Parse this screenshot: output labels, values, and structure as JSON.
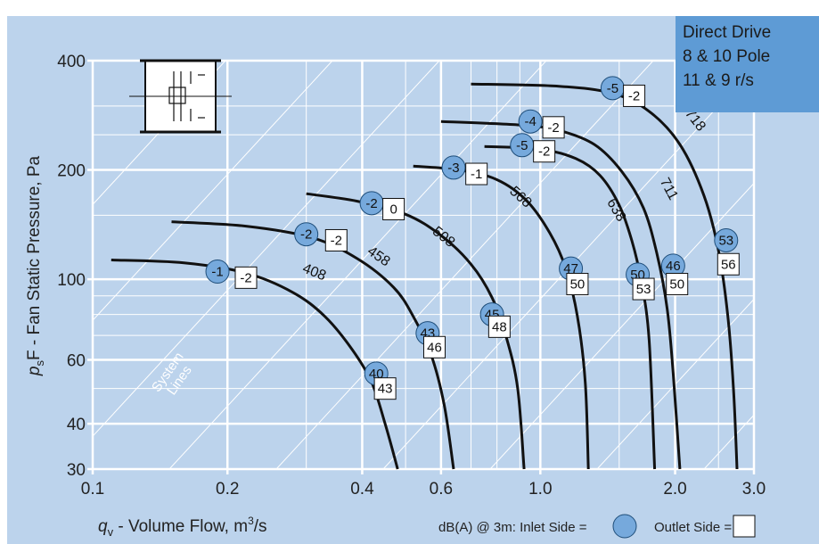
{
  "chart_data": {
    "type": "line",
    "title": "",
    "xlabel": "",
    "ylabel": "",
    "x_scale": "log",
    "y_scale": "log",
    "xlim": [
      0.1,
      3.0
    ],
    "ylim": [
      30,
      400
    ],
    "grid": true,
    "x_ticks": [
      {
        "value": 0.1,
        "label": "0.1"
      },
      {
        "value": 0.2,
        "label": "0.2"
      },
      {
        "value": 0.4,
        "label": "0.4"
      },
      {
        "value": 0.6,
        "label": "0.6"
      },
      {
        "value": 1.0,
        "label": "1.0"
      },
      {
        "value": 2.0,
        "label": "2.0"
      },
      {
        "value": 3.0,
        "label": "3.0"
      }
    ],
    "y_ticks": [
      {
        "value": 30,
        "label": "30"
      },
      {
        "value": 40,
        "label": "40"
      },
      {
        "value": 60,
        "label": "60"
      },
      {
        "value": 100,
        "label": "100"
      },
      {
        "value": 200,
        "label": "200"
      },
      {
        "value": 400,
        "label": "400"
      }
    ],
    "minor_x": [
      0.3,
      0.5,
      0.7,
      0.8,
      0.9,
      1.5,
      2.5
    ],
    "minor_y": [
      50,
      70,
      80,
      90,
      150,
      250,
      300
    ],
    "series": [
      {
        "name": "408",
        "points": [
          [
            0.11,
            113
          ],
          [
            0.16,
            111
          ],
          [
            0.22,
            104
          ],
          [
            0.28,
            92
          ],
          [
            0.33,
            79
          ],
          [
            0.38,
            64
          ],
          [
            0.42,
            52
          ],
          [
            0.45,
            40
          ],
          [
            0.48,
            30
          ]
        ],
        "label_at": [
          0.31,
          102
        ],
        "label_angle": 22,
        "inlet": {
          "dba": "-1",
          "at": [
            0.19,
            105
          ]
        },
        "outlet": {
          "dba": "-2",
          "at": [
            0.22,
            101
          ]
        },
        "inlet_low": {
          "dba": "40",
          "at": [
            0.43,
            55
          ]
        },
        "outlet_low": {
          "dba": "43",
          "at": [
            0.45,
            50
          ]
        }
      },
      {
        "name": "458",
        "points": [
          [
            0.15,
            144
          ],
          [
            0.22,
            140
          ],
          [
            0.31,
            130
          ],
          [
            0.39,
            114
          ],
          [
            0.47,
            95
          ],
          [
            0.52,
            79
          ],
          [
            0.57,
            62
          ],
          [
            0.61,
            45
          ],
          [
            0.64,
            30
          ]
        ],
        "label_at": [
          0.43,
          113
        ],
        "label_angle": 35,
        "inlet": {
          "dba": "-2",
          "at": [
            0.3,
            133
          ]
        },
        "outlet": {
          "dba": "-2",
          "at": [
            0.35,
            128
          ]
        },
        "inlet_low": {
          "dba": "43",
          "at": [
            0.56,
            71
          ]
        },
        "outlet_low": {
          "dba": "46",
          "at": [
            0.58,
            65
          ]
        }
      },
      {
        "name": "508",
        "points": [
          [
            0.3,
            172
          ],
          [
            0.39,
            164
          ],
          [
            0.5,
            151
          ],
          [
            0.6,
            132
          ],
          [
            0.7,
            110
          ],
          [
            0.78,
            89
          ],
          [
            0.84,
            69
          ],
          [
            0.89,
            50
          ],
          [
            0.92,
            30
          ]
        ],
        "label_at": [
          0.6,
          128
        ],
        "label_angle": 38,
        "inlet": {
          "dba": "-2",
          "at": [
            0.42,
            162
          ]
        },
        "outlet": {
          "dba": "0",
          "at": [
            0.47,
            156
          ]
        },
        "inlet_low": {
          "dba": "45",
          "at": [
            0.78,
            80
          ]
        },
        "outlet_low": {
          "dba": "48",
          "at": [
            0.81,
            74
          ]
        }
      },
      {
        "name": "568",
        "points": [
          [
            0.52,
            205
          ],
          [
            0.66,
            200
          ],
          [
            0.8,
            188
          ],
          [
            0.93,
            165
          ],
          [
            1.05,
            134
          ],
          [
            1.14,
            107
          ],
          [
            1.21,
            79
          ],
          [
            1.26,
            52
          ],
          [
            1.28,
            30
          ]
        ],
        "label_at": [
          0.89,
          165
        ],
        "label_angle": 42,
        "inlet": {
          "dba": "-3",
          "at": [
            0.64,
            203
          ]
        },
        "outlet": {
          "dba": "-1",
          "at": [
            0.72,
            195
          ]
        },
        "inlet_low": {
          "dba": "47",
          "at": [
            1.17,
            107
          ]
        },
        "outlet_low": {
          "dba": "50",
          "at": [
            1.21,
            97
          ]
        }
      },
      {
        "name": "638",
        "points": [
          [
            0.75,
            232
          ],
          [
            1.0,
            228
          ],
          [
            1.2,
            215
          ],
          [
            1.36,
            193
          ],
          [
            1.5,
            160
          ],
          [
            1.6,
            128
          ],
          [
            1.68,
            99
          ],
          [
            1.75,
            68
          ],
          [
            1.8,
            30
          ]
        ],
        "label_at": [
          1.45,
          153
        ],
        "label_angle": 60,
        "inlet": {
          "dba": "-5",
          "at": [
            0.91,
            234
          ]
        },
        "outlet": {
          "dba": "-2",
          "at": [
            1.02,
            225
          ]
        },
        "inlet_low": {
          "dba": "50",
          "at": [
            1.65,
            103
          ]
        },
        "outlet_low": {
          "dba": "53",
          "at": [
            1.7,
            94
          ]
        }
      },
      {
        "name": "711",
        "points": [
          [
            0.6,
            272
          ],
          [
            0.9,
            266
          ],
          [
            1.1,
            257
          ],
          [
            1.32,
            235
          ],
          [
            1.52,
            198
          ],
          [
            1.7,
            157
          ],
          [
            1.82,
            118
          ],
          [
            1.92,
            83
          ],
          [
            1.98,
            55
          ],
          [
            2.05,
            30
          ]
        ],
        "label_at": [
          1.9,
          175
        ],
        "label_angle": 62,
        "inlet": {
          "dba": "-4",
          "at": [
            0.95,
            272
          ]
        },
        "outlet": {
          "dba": "-2",
          "at": [
            1.07,
            262
          ]
        },
        "inlet_low": {
          "dba": "46",
          "at": [
            1.98,
            109
          ]
        },
        "outlet_low": {
          "dba": "50",
          "at": [
            2.02,
            97
          ]
        }
      },
      {
        "name": "718",
        "points": [
          [
            0.7,
            345
          ],
          [
            1.1,
            340
          ],
          [
            1.45,
            325
          ],
          [
            1.75,
            290
          ],
          [
            2.05,
            235
          ],
          [
            2.32,
            170
          ],
          [
            2.5,
            120
          ],
          [
            2.62,
            80
          ],
          [
            2.7,
            50
          ],
          [
            2.75,
            30
          ]
        ],
        "label_at": [
          2.18,
          270
        ],
        "label_angle": 52,
        "inlet": {
          "dba": "-5",
          "at": [
            1.45,
            336
          ]
        },
        "outlet": {
          "dba": "-2",
          "at": [
            1.62,
            320
          ]
        },
        "inlet_low": {
          "dba": "53",
          "at": [
            2.6,
            128
          ]
        },
        "outlet_low": {
          "dba": "56",
          "at": [
            2.63,
            110
          ]
        }
      }
    ]
  },
  "axis_labels": {
    "y_symbol": "p",
    "y_sub": "s",
    "y_rest": "F - Fan Static Pressure, Pa",
    "x_symbol": "q",
    "x_sub": "v",
    "x_rest": " - Volume Flow, m",
    "x_sup": "3",
    "x_tail": "/s"
  },
  "legend": {
    "intro": "dB(A) @ 3m:  Inlet Side =",
    "outlet": "Outlet Side ="
  },
  "annotation": {
    "line1": "System",
    "line2": "Lines"
  },
  "info_box": {
    "line1": "Direct Drive",
    "line2": "8 & 10 Pole",
    "line3": "11 & 9  r/s"
  },
  "colors": {
    "plot_bg": "#bcd3ec",
    "box_bg": "#5e9bd5",
    "inlet_fill": "#76a9dc",
    "grid": "#ffffff",
    "curve": "#111111"
  }
}
